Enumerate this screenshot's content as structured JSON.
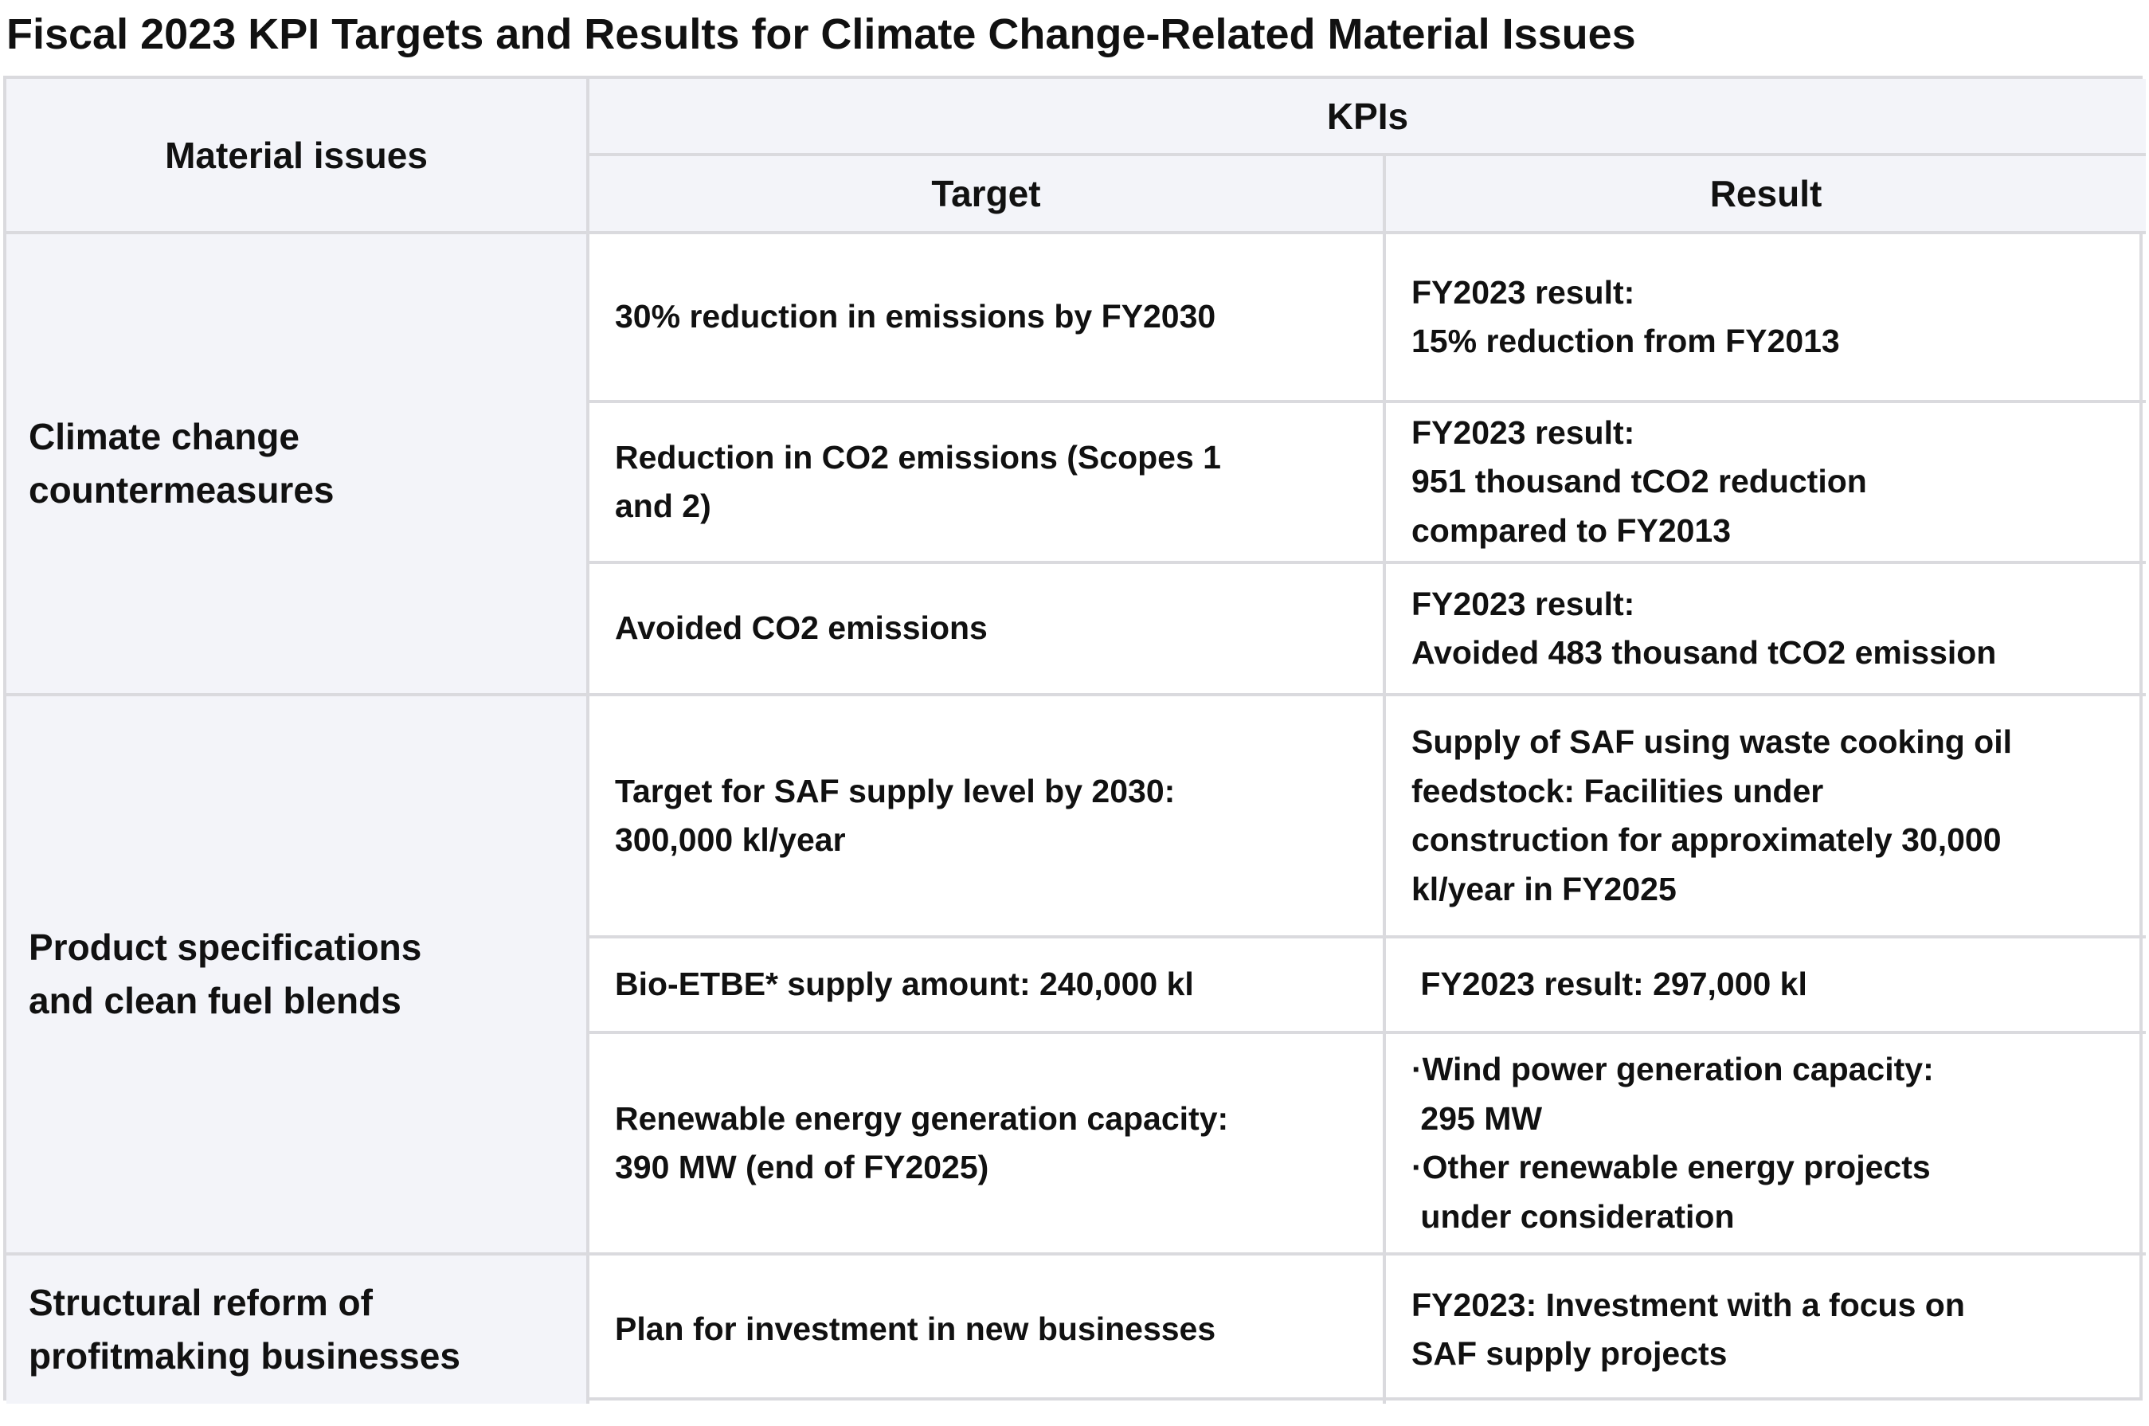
{
  "page_title": "Fiscal 2023 KPI Targets and Results for Climate Change-Related Material Issues",
  "table": {
    "headers": {
      "material_issues": "Material issues",
      "kpis": "KPIs",
      "target": "Target",
      "result": "Result"
    },
    "groups": [
      {
        "issue": "Climate change\ncountermeasures",
        "rows": [
          {
            "target": "30% reduction in emissions by FY2030",
            "result": "FY2023 result:\n15% reduction from FY2013"
          },
          {
            "target": "Reduction in CO2 emissions (Scopes 1\nand 2)",
            "result": "FY2023 result:\n951 thousand tCO2 reduction\ncompared to FY2013"
          },
          {
            "target": "Avoided CO2 emissions",
            "result": "FY2023 result:\nAvoided 483 thousand tCO2 emission"
          }
        ]
      },
      {
        "issue": "Product specifications\nand clean fuel blends",
        "rows": [
          {
            "target": "Target for SAF supply level by 2030:\n300,000 kl/year",
            "result": "Supply of SAF using waste cooking oil\nfeedstock: Facilities under\nconstruction for approximately 30,000\nkl/year in FY2025"
          },
          {
            "target": "Bio-ETBE* supply amount: 240,000 kl",
            "result": " FY2023 result: 297,000 kl"
          },
          {
            "target": "Renewable energy generation capacity:\n390 MW (end of FY2025)",
            "result": "·Wind power generation capacity:\n 295 MW\n·Other renewable energy projects\n under consideration"
          }
        ]
      },
      {
        "issue": "Structural reform of\nprofitmaking businesses",
        "rows": [
          {
            "target": "Plan for investment in new businesses",
            "result": "FY2023: Investment with a focus on\nSAF supply projects"
          }
        ]
      }
    ]
  },
  "colors": {
    "shade_bg": "#f3f4f9",
    "body_bg": "#ffffff",
    "border": "#dadade",
    "text": "#111111"
  }
}
